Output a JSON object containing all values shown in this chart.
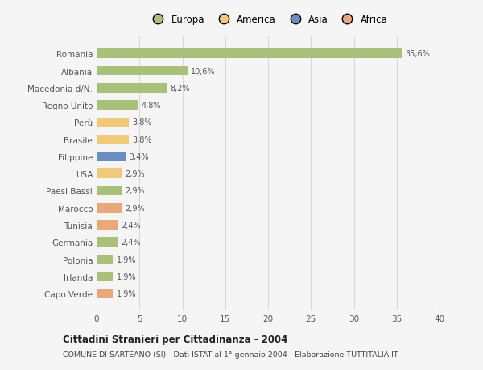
{
  "categories": [
    "Capo Verde",
    "Irlanda",
    "Polonia",
    "Germania",
    "Tunisia",
    "Marocco",
    "Paesi Bassi",
    "USA",
    "Filippine",
    "Brasile",
    "Perù",
    "Regno Unito",
    "Macedonia d/N.",
    "Albania",
    "Romania"
  ],
  "values": [
    1.9,
    1.9,
    1.9,
    2.4,
    2.4,
    2.9,
    2.9,
    2.9,
    3.4,
    3.8,
    3.8,
    4.8,
    8.2,
    10.6,
    35.6
  ],
  "colors": [
    "#e8a87c",
    "#a8c07a",
    "#a8c07a",
    "#a8c07a",
    "#e8a87c",
    "#e8a87c",
    "#a8c07a",
    "#f0c97a",
    "#6a8fbf",
    "#f0c97a",
    "#f0c97a",
    "#a8c07a",
    "#a8c07a",
    "#a8c07a",
    "#a8c07a"
  ],
  "labels": [
    "1,9%",
    "1,9%",
    "1,9%",
    "2,4%",
    "2,4%",
    "2,9%",
    "2,9%",
    "2,9%",
    "3,4%",
    "3,8%",
    "3,8%",
    "4,8%",
    "8,2%",
    "10,6%",
    "35,6%"
  ],
  "xlim": [
    0,
    40
  ],
  "xticks": [
    0,
    5,
    10,
    15,
    20,
    25,
    30,
    35,
    40
  ],
  "legend_labels": [
    "Europa",
    "America",
    "Asia",
    "Africa"
  ],
  "legend_colors": [
    "#a8c07a",
    "#f0c97a",
    "#6a8fbf",
    "#e8a87c"
  ],
  "title": "Cittadini Stranieri per Cittadinanza - 2004",
  "subtitle": "COMUNE DI SARTEANO (SI) - Dati ISTAT al 1° gennaio 2004 - Elaborazione TUTTITALIA.IT",
  "bg_color": "#f5f5f5",
  "grid_color": "#d8d8d8",
  "bar_height": 0.55
}
